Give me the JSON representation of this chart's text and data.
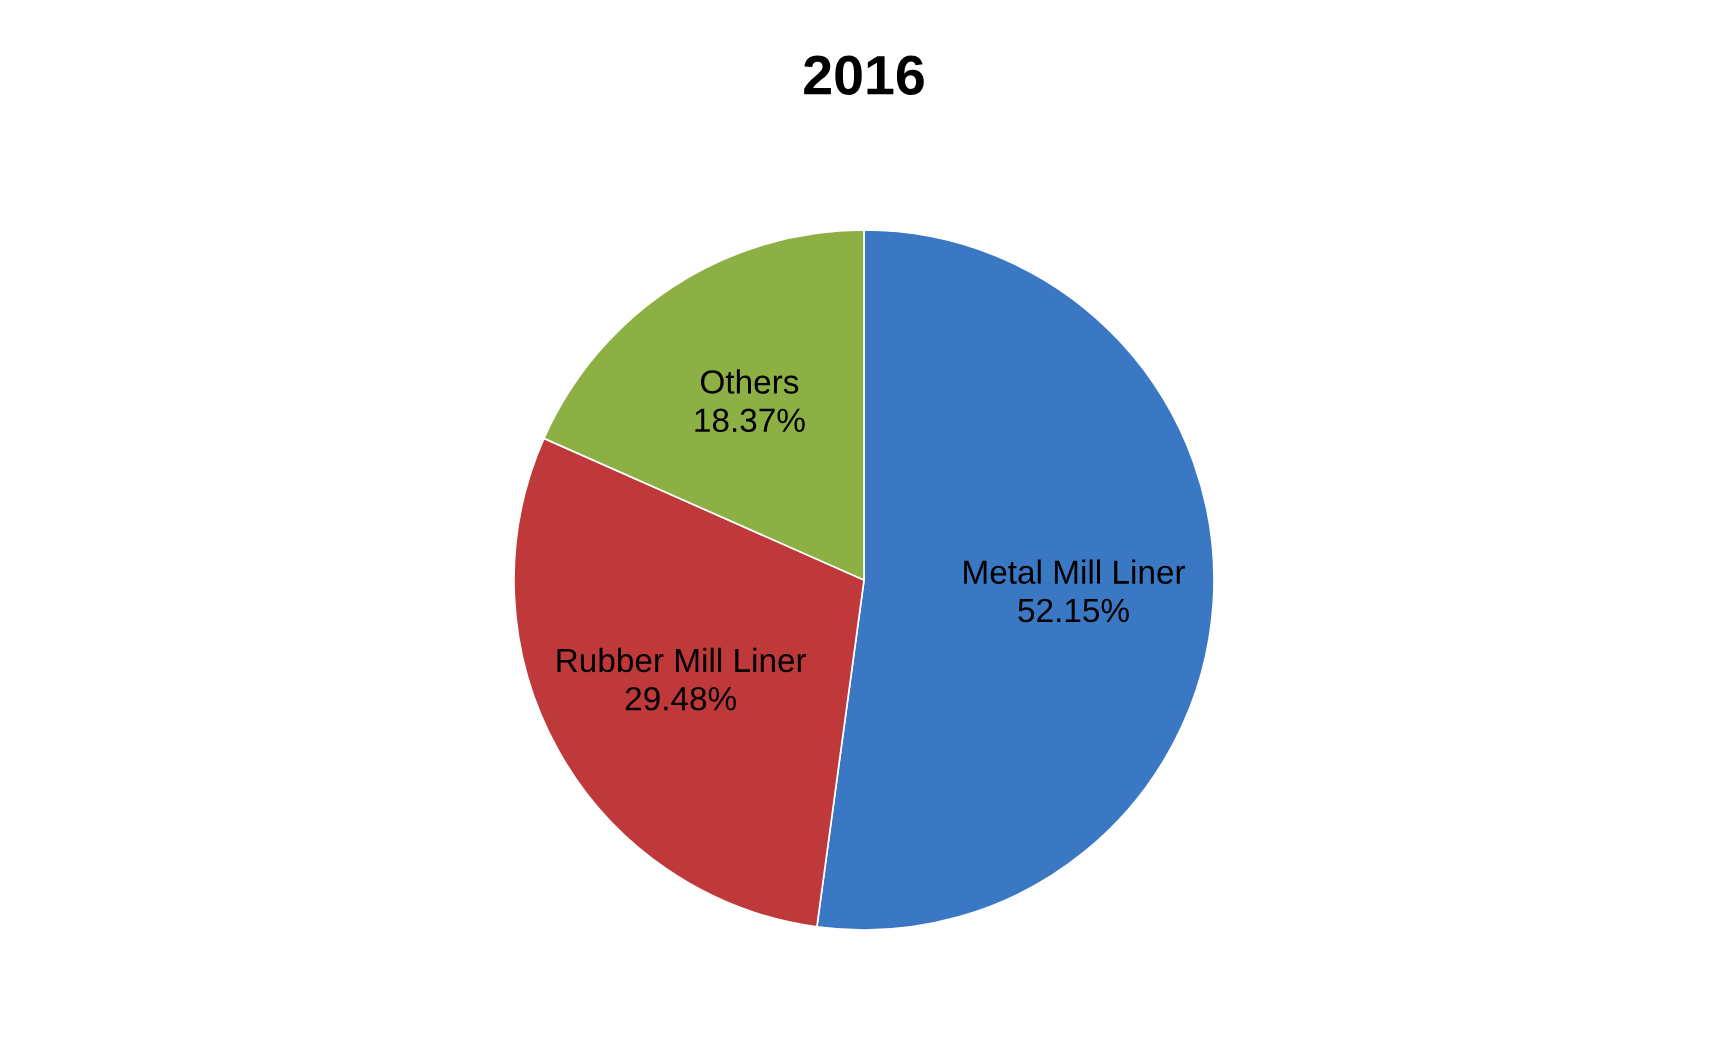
{
  "chart_data": {
    "type": "pie",
    "title": "2016",
    "categories": [
      "Metal Mill Liner",
      "Rubber Mill Liner",
      "Others"
    ],
    "values": [
      52.15,
      29.48,
      18.37
    ],
    "value_labels": [
      "52.15%",
      "29.48%",
      "18.37%"
    ],
    "colors": [
      "#3a78c4",
      "#c0393a",
      "#8cb043"
    ],
    "legend": false
  }
}
